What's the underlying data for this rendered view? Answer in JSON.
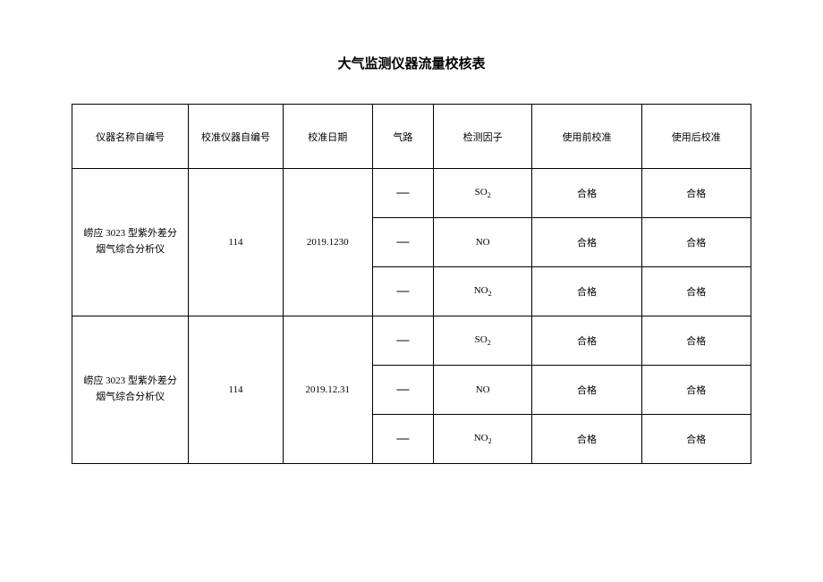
{
  "title": "大气监测仪器流量校核表",
  "table": {
    "headers": {
      "col1": "仪器名称自编号",
      "col2": "校准仪器自编号",
      "col3": "校准日期",
      "col4": "气路",
      "col5": "检测因子",
      "col6": "使用前校准",
      "col7": "使用后校准"
    },
    "groups": [
      {
        "name": "崂应 3023 型紫外差分烟气综合分析仪",
        "calib_no": "114",
        "date": "2019.1230",
        "rows": [
          {
            "path": "—",
            "factor_html": "SO<sub>2</sub>",
            "before": "合格",
            "after": "合格"
          },
          {
            "path": "—",
            "factor_html": "NO",
            "before": "合格",
            "after": "合格"
          },
          {
            "path": "—",
            "factor_html": "NO<sub>2</sub>",
            "before": "合格",
            "after": "合格"
          }
        ]
      },
      {
        "name": "崂应 3023 型紫外差分烟气综合分析仪",
        "calib_no": "114",
        "date": "2019.12.31",
        "rows": [
          {
            "path": "—",
            "factor_html": "SO<sub>2</sub>",
            "before": "合格",
            "after": "合格"
          },
          {
            "path": "—",
            "factor_html": "NO",
            "before": "合格",
            "after": "合格"
          },
          {
            "path": "—",
            "factor_html": "NO<sub>2</sub>",
            "before": "合格",
            "after": "合格"
          }
        ]
      }
    ]
  }
}
